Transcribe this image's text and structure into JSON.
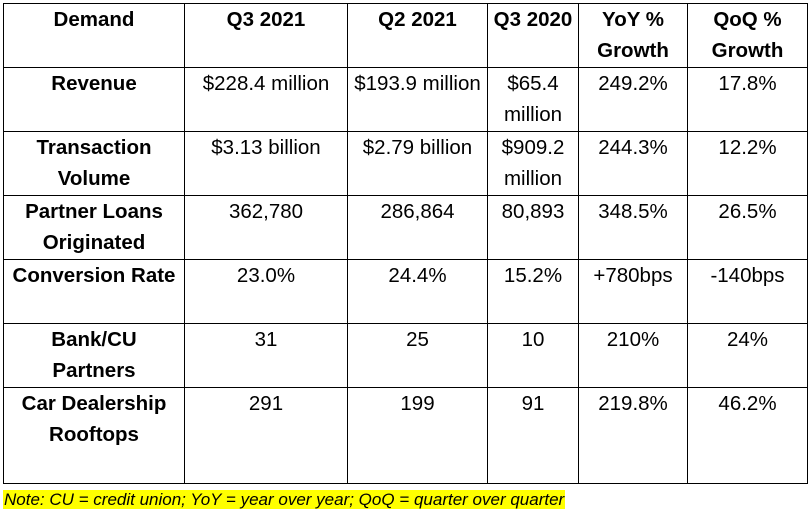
{
  "table": {
    "headers": [
      "Demand",
      "Q3 2021",
      "Q2 2021",
      "Q3 2020",
      "YoY % Growth",
      "QoQ % Growth"
    ],
    "rows": [
      {
        "label": "Revenue",
        "values": [
          "$228.4 million",
          "$193.9 million",
          "$65.4 million",
          "249.2%",
          "17.8%"
        ]
      },
      {
        "label": "Transaction Volume",
        "values": [
          "$3.13 billion",
          "$2.79 billion",
          "$909.2 million",
          "244.3%",
          "12.2%"
        ]
      },
      {
        "label": "Partner Loans Originated",
        "values": [
          "362,780",
          "286,864",
          "80,893",
          "348.5%",
          "26.5%"
        ]
      },
      {
        "label": "Conversion Rate",
        "values": [
          "23.0%",
          "24.4%",
          "15.2%",
          "+780bps",
          "-140bps"
        ]
      },
      {
        "label": "Bank/CU Partners",
        "values": [
          "31",
          "25",
          "10",
          "210%",
          "24%"
        ]
      },
      {
        "label": "Car Dealership Rooftops",
        "values": [
          "291",
          "199",
          "91",
          "219.8%",
          "46.2%"
        ]
      }
    ]
  },
  "note": "Note: CU = credit union; YoY = year over year; QoQ = quarter over quarter"
}
